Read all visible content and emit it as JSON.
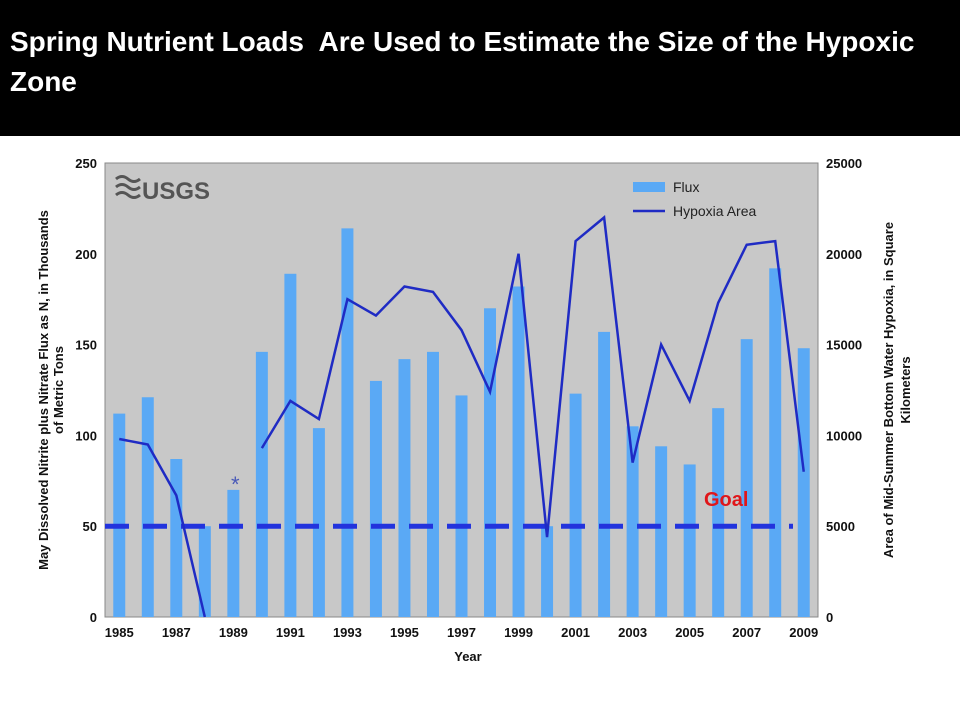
{
  "title": "Spring Nutrient Loads  Are Used to Estimate the Size of the Hypoxic Zone",
  "logo_text": "USGS",
  "goal_label": "Goal",
  "asterisk_label": "*",
  "colors": {
    "background": "#000000",
    "plot_bg": "#c8c8c8",
    "flux": "#5aa9f5",
    "hypoxia": "#1f2bc4",
    "goal": "#2233dd",
    "goal_text": "#e0161a"
  },
  "chart_data": {
    "type": "bar",
    "title": "",
    "xlabel": "Year",
    "ylabel": "May Dissolved Nitrite plus Nitrate Flux as N, in Thousands of Metric Tons",
    "y2label": "Area of Mid-Summer Bottom Water Hypoxia, in Square Kilometers",
    "ylim": [
      0,
      250
    ],
    "y2lim": [
      0,
      25000
    ],
    "yticks": [
      0,
      50,
      100,
      150,
      200,
      250
    ],
    "y2ticks": [
      0,
      5000,
      10000,
      15000,
      20000,
      25000
    ],
    "xtick_labels": [
      "1985",
      "1987",
      "1989",
      "1991",
      "1993",
      "1995",
      "1997",
      "1999",
      "2001",
      "2003",
      "2005",
      "2007",
      "2009"
    ],
    "grid": false,
    "legend_position": "top-right",
    "categories": [
      1985,
      1986,
      1987,
      1988,
      1989,
      1990,
      1991,
      1992,
      1993,
      1994,
      1995,
      1996,
      1997,
      1998,
      1999,
      2000,
      2001,
      2002,
      2003,
      2004,
      2005,
      2006,
      2007,
      2008,
      2009
    ],
    "series": [
      {
        "name": "Flux",
        "type": "bar",
        "axis": "left",
        "values": [
          112,
          121,
          87,
          50,
          70,
          146,
          189,
          104,
          214,
          130,
          142,
          146,
          122,
          170,
          182,
          50,
          123,
          157,
          105,
          94,
          84,
          115,
          153,
          192,
          148
        ]
      },
      {
        "name": "Hypoxia Area",
        "type": "line",
        "axis": "right",
        "values": [
          9800,
          9500,
          6700,
          0,
          null,
          9300,
          11900,
          10900,
          17500,
          16600,
          18200,
          17900,
          15800,
          12400,
          20000,
          4400,
          20700,
          22000,
          8500,
          15000,
          11900,
          17300,
          20500,
          20700,
          8000
        ]
      }
    ],
    "goal_line": 5000,
    "annotations": [
      "*",
      "Goal"
    ]
  }
}
